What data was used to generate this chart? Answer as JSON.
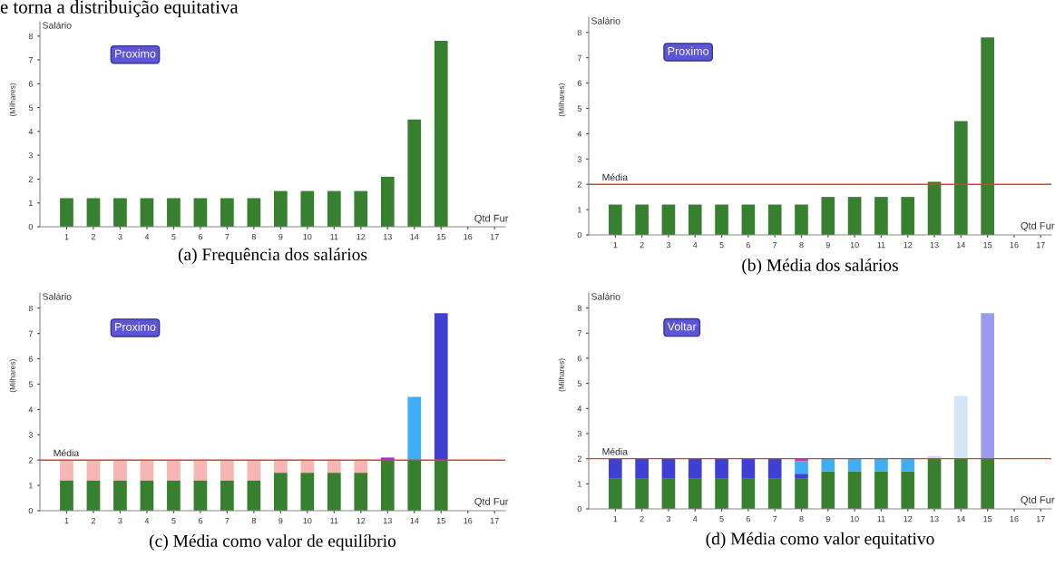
{
  "chart_data": [
    {
      "type": "bar",
      "title": "(a) Frequência dos salários",
      "xlabel": "Qtd Fur",
      "ylabel": "(Milhares)",
      "annotations": [
        "Salário",
        "Proximo",
        "e torna a distribuição equitativa"
      ],
      "x": [
        1,
        2,
        3,
        4,
        5,
        6,
        7,
        8,
        9,
        10,
        11,
        12,
        13,
        14,
        15
      ],
      "xlim": [
        0,
        17.4
      ],
      "xticks": [
        1,
        2,
        3,
        4,
        5,
        6,
        7,
        8,
        9,
        10,
        11,
        12,
        13,
        14,
        15,
        16,
        17
      ],
      "ylim": [
        0,
        8.6
      ],
      "yticks": [
        0,
        1,
        2,
        3,
        4,
        5,
        6,
        7,
        8
      ],
      "grid": false,
      "series": [
        {
          "color": "#36802f",
          "values": [
            1.2,
            1.2,
            1.2,
            1.2,
            1.2,
            1.2,
            1.2,
            1.2,
            1.5,
            1.5,
            1.5,
            1.5,
            2.1,
            4.5,
            7.8
          ]
        }
      ]
    },
    {
      "type": "bar",
      "title": "(b) Média dos salários",
      "xlabel": "Qtd Fur",
      "ylabel": "(Milhares)",
      "annotations": [
        "Salário",
        "Proximo"
      ],
      "x": [
        1,
        2,
        3,
        4,
        5,
        6,
        7,
        8,
        9,
        10,
        11,
        12,
        13,
        14,
        15
      ],
      "xlim": [
        0,
        17.4
      ],
      "xticks": [
        1,
        2,
        3,
        4,
        5,
        6,
        7,
        8,
        9,
        10,
        11,
        12,
        13,
        14,
        15,
        16,
        17
      ],
      "ylim": [
        0,
        8.6
      ],
      "yticks": [
        0,
        1,
        2,
        3,
        4,
        5,
        6,
        7,
        8
      ],
      "grid": false,
      "ref_lines": [
        {
          "axis": "y",
          "value": 2,
          "label": "Média",
          "color": "#e03c3c"
        }
      ],
      "series": [
        {
          "color": "#36802f",
          "values": [
            1.2,
            1.2,
            1.2,
            1.2,
            1.2,
            1.2,
            1.2,
            1.2,
            1.5,
            1.5,
            1.5,
            1.5,
            2.1,
            4.5,
            7.8
          ]
        }
      ]
    },
    {
      "type": "bar",
      "stacked": true,
      "title": "(c) Média como valor de equilíbrio",
      "xlabel": "Qtd Fur",
      "ylabel": "(Milhares)",
      "annotations": [
        "Salário",
        "Proximo"
      ],
      "x": [
        1,
        2,
        3,
        4,
        5,
        6,
        7,
        8,
        9,
        10,
        11,
        12,
        13,
        14,
        15
      ],
      "xlim": [
        0,
        17.4
      ],
      "xticks": [
        1,
        2,
        3,
        4,
        5,
        6,
        7,
        8,
        9,
        10,
        11,
        12,
        13,
        14,
        15,
        16,
        17
      ],
      "ylim": [
        0,
        8.6
      ],
      "yticks": [
        0,
        1,
        2,
        3,
        4,
        5,
        6,
        7,
        8
      ],
      "grid": false,
      "ref_lines": [
        {
          "axis": "y",
          "value": 2,
          "label": "Média",
          "color": "#e03c3c"
        }
      ],
      "series": [
        {
          "color": "#36802f",
          "values": [
            1.2,
            1.2,
            1.2,
            1.2,
            1.2,
            1.2,
            1.2,
            1.2,
            1.5,
            1.5,
            1.5,
            1.5,
            2,
            2,
            2
          ]
        },
        {
          "color": "#f7b5b5",
          "values": [
            0.8,
            0.8,
            0.8,
            0.8,
            0.8,
            0.8,
            0.8,
            0.8,
            0.5,
            0.5,
            0.5,
            0.5,
            null,
            null,
            null
          ]
        },
        {
          "color": "#9933ee",
          "values": [
            null,
            null,
            null,
            null,
            null,
            null,
            null,
            null,
            null,
            null,
            null,
            null,
            0.1,
            null,
            null
          ]
        },
        {
          "color": "#3fadf7",
          "values": [
            null,
            null,
            null,
            null,
            null,
            null,
            null,
            null,
            null,
            null,
            null,
            null,
            null,
            2.5,
            null
          ]
        },
        {
          "color": "#3f3fd4",
          "values": [
            null,
            null,
            null,
            null,
            null,
            null,
            null,
            null,
            null,
            null,
            null,
            null,
            null,
            null,
            5.8
          ]
        }
      ]
    },
    {
      "type": "bar",
      "stacked": true,
      "title": "(d) Média como valor equitativo",
      "xlabel": "Qtd Fur",
      "ylabel": "(Milhares)",
      "annotations": [
        "Salário",
        "Voltar"
      ],
      "x": [
        1,
        2,
        3,
        4,
        5,
        6,
        7,
        8,
        9,
        10,
        11,
        12,
        13,
        14,
        15
      ],
      "xlim": [
        0,
        17.4
      ],
      "xticks": [
        1,
        2,
        3,
        4,
        5,
        6,
        7,
        8,
        9,
        10,
        11,
        12,
        13,
        14,
        15,
        16,
        17
      ],
      "ylim": [
        0,
        8.6
      ],
      "yticks": [
        0,
        1,
        2,
        3,
        4,
        5,
        6,
        7,
        8
      ],
      "grid": false,
      "ref_lines": [
        {
          "axis": "y",
          "value": 2,
          "label": "Média",
          "color": "#e03c3c"
        }
      ],
      "series": [
        {
          "color": "#36802f",
          "values": [
            1.2,
            1.2,
            1.2,
            1.2,
            1.2,
            1.2,
            1.2,
            1.2,
            1.5,
            1.5,
            1.5,
            1.5,
            2,
            2,
            2
          ]
        },
        {
          "color": "#3f3fd4",
          "values": [
            0.8,
            0.8,
            0.8,
            0.8,
            0.8,
            0.8,
            0.8,
            0.2,
            null,
            null,
            null,
            null,
            null,
            null,
            null
          ]
        },
        {
          "color": "#3fadf7",
          "values": [
            null,
            null,
            null,
            null,
            null,
            null,
            null,
            0.5,
            0.5,
            0.5,
            0.5,
            0.5,
            null,
            null,
            null
          ]
        },
        {
          "color": "#cc33cc",
          "values": [
            null,
            null,
            null,
            null,
            null,
            null,
            null,
            0.1,
            null,
            null,
            null,
            null,
            null,
            null,
            null
          ]
        },
        {
          "color": "#e6ccf5",
          "values": [
            null,
            null,
            null,
            null,
            null,
            null,
            null,
            null,
            null,
            null,
            null,
            null,
            0.1,
            null,
            null
          ]
        },
        {
          "color": "#d3e6f8",
          "values": [
            null,
            null,
            null,
            null,
            null,
            null,
            null,
            null,
            null,
            null,
            null,
            null,
            null,
            2.5,
            null
          ]
        },
        {
          "color": "#9a9aee",
          "values": [
            null,
            null,
            null,
            null,
            null,
            null,
            null,
            null,
            null,
            null,
            null,
            null,
            null,
            null,
            5.8
          ]
        }
      ]
    }
  ]
}
